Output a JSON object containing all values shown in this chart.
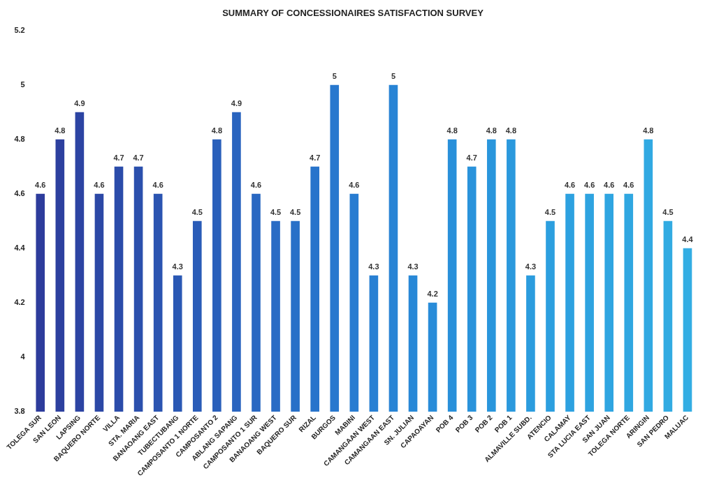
{
  "chart_data": {
    "type": "bar",
    "title": "SUMMARY OF CONCESSIONAIRES SATISFACTION SURVEY",
    "categories": [
      "TOLEGA SUR",
      "SAN LEON",
      "LAPSING",
      "BAQUERO NORTE",
      "VILLA",
      "STA. MARIA",
      "BANAOANG EAST",
      "TUBECTUBANG",
      "CAMPOSANTO 1 NORTE",
      "CAMPOSANTO 2",
      "ABLANG SAPANG",
      "CAMPOSANTO 1 SUR",
      "BANAOANG WEST",
      "BAQUERO SUR",
      "RIZAL",
      "BURGOS",
      "MABINI",
      "CAMANGAAN WEST",
      "CAMANGAAN EAST",
      "SN. JULIAN",
      "CAPAOAYAN",
      "POB 4",
      "POB 3",
      "POB 2",
      "POB 1",
      "ALMAVILLE SUBD.",
      "ATENCIO",
      "CALAMAY",
      "STA LUCIA EAST",
      "SAN JUAN",
      "TOLEGA NORTE",
      "ARINGIN",
      "SAN PEDRO",
      "MALUAC"
    ],
    "values": [
      4.6,
      4.8,
      4.9,
      4.6,
      4.7,
      4.7,
      4.6,
      4.3,
      4.5,
      4.8,
      4.9,
      4.6,
      4.5,
      4.5,
      4.7,
      5,
      4.6,
      4.3,
      5,
      4.3,
      4.2,
      4.8,
      4.7,
      4.8,
      4.8,
      4.3,
      4.5,
      4.6,
      4.6,
      4.6,
      4.6,
      4.8,
      4.5,
      4.4
    ],
    "colors": [
      "#2d3c9c",
      "#2d409f",
      "#2c44a3",
      "#2c48a6",
      "#2b4caa",
      "#2b50ad",
      "#2b54b1",
      "#2a58b4",
      "#2a5cb8",
      "#2a60bb",
      "#2964bf",
      "#2968c2",
      "#296cc5",
      "#2870c8",
      "#2874cb",
      "#2878ce",
      "#287cd1",
      "#2880d3",
      "#2884d5",
      "#2888d7",
      "#298cd9",
      "#2990da",
      "#2a93db",
      "#2a96dc",
      "#2b99dd",
      "#2b9cde",
      "#2c9fdf",
      "#2da1e0",
      "#2ea3e0",
      "#2fa5e1",
      "#30a7e1",
      "#31a9e2",
      "#32abe2",
      "#33ade3"
    ],
    "ylim": [
      3.8,
      5.2
    ],
    "yticks": [
      3.8,
      4,
      4.2,
      4.4,
      4.6,
      4.8,
      5,
      5.2
    ],
    "grid": false,
    "legend": false,
    "data_labels": true
  }
}
